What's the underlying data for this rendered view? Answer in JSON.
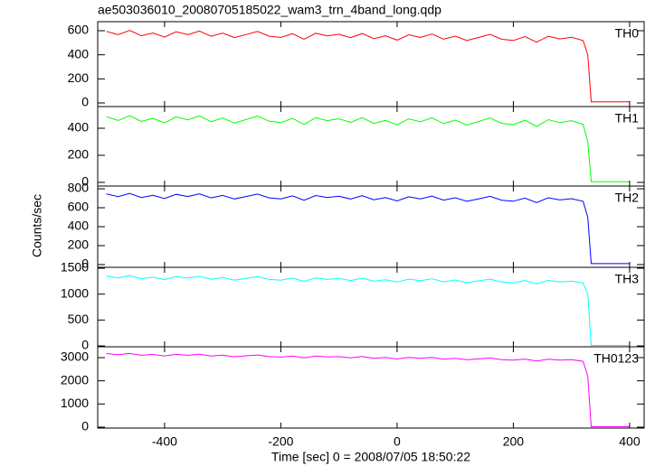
{
  "chart_data": [
    {
      "type": "line",
      "title": "ae503036010_20080705185022_wam3_trn_4band_long.qdp",
      "xlim": [
        -515,
        425
      ],
      "xticks": [
        -400,
        -200,
        0,
        200,
        400
      ],
      "ylim": [
        -30,
        675
      ],
      "yticks": [
        0,
        200,
        400,
        600
      ],
      "x": [
        -500,
        -480,
        -460,
        -440,
        -420,
        -400,
        -380,
        -360,
        -340,
        -320,
        -300,
        -280,
        -260,
        -240,
        -220,
        -200,
        -180,
        -160,
        -140,
        -120,
        -100,
        -80,
        -60,
        -40,
        -20,
        0,
        20,
        40,
        60,
        80,
        100,
        120,
        140,
        160,
        180,
        200,
        220,
        240,
        260,
        280,
        300,
        320,
        328,
        334,
        400
      ],
      "series": [
        {
          "name": "TH0",
          "color": "#ff0000",
          "values": [
            595,
            567,
            602,
            558,
            581,
            547,
            591,
            568,
            597,
            554,
            580,
            543,
            568,
            594,
            554,
            544,
            575,
            529,
            579,
            557,
            571,
            542,
            577,
            534,
            557,
            522,
            566,
            544,
            573,
            530,
            555,
            518,
            544,
            570,
            529,
            519,
            551,
            505,
            554,
            532,
            546,
            518,
            400,
            10,
            10
          ]
        }
      ]
    },
    {
      "type": "line",
      "xlim": [
        -515,
        425
      ],
      "xticks": [
        -400,
        -200,
        0,
        200,
        400
      ],
      "ylim": [
        -27,
        560
      ],
      "yticks": [
        0,
        200,
        400
      ],
      "x": [
        -500,
        -480,
        -460,
        -440,
        -420,
        -400,
        -380,
        -360,
        -340,
        -320,
        -300,
        -280,
        -260,
        -240,
        -220,
        -200,
        -180,
        -160,
        -140,
        -120,
        -100,
        -80,
        -60,
        -40,
        -20,
        0,
        20,
        40,
        60,
        80,
        100,
        120,
        140,
        160,
        180,
        200,
        220,
        240,
        260,
        280,
        300,
        320,
        328,
        334,
        400
      ],
      "series": [
        {
          "name": "TH1",
          "color": "#00ff00",
          "values": [
            485,
            457,
            493,
            450,
            473,
            439,
            484,
            462,
            491,
            448,
            475,
            438,
            464,
            490,
            451,
            441,
            473,
            428,
            478,
            456,
            470,
            443,
            478,
            435,
            458,
            425,
            469,
            447,
            477,
            434,
            460,
            423,
            450,
            476,
            436,
            426,
            459,
            413,
            463,
            441,
            456,
            428,
            300,
            5,
            5
          ]
        }
      ]
    },
    {
      "type": "line",
      "y_label": "Counts/sec",
      "xlim": [
        -515,
        425
      ],
      "xticks": [
        -400,
        -200,
        0,
        200,
        400
      ],
      "ylim": [
        -29,
        829
      ],
      "yticks": [
        0,
        200,
        400,
        600,
        800
      ],
      "x": [
        -500,
        -480,
        -460,
        -440,
        -420,
        -400,
        -380,
        -360,
        -340,
        -320,
        -300,
        -280,
        -260,
        -240,
        -220,
        -200,
        -180,
        -160,
        -140,
        -120,
        -100,
        -80,
        -60,
        -40,
        -20,
        0,
        20,
        40,
        60,
        80,
        100,
        120,
        140,
        160,
        180,
        200,
        220,
        240,
        260,
        280,
        300,
        320,
        328,
        334,
        400
      ],
      "series": [
        {
          "name": "TH2",
          "color": "#0000ff",
          "values": [
            745,
            717,
            752,
            708,
            731,
            697,
            741,
            718,
            747,
            704,
            730,
            693,
            718,
            744,
            704,
            694,
            725,
            679,
            729,
            707,
            721,
            692,
            727,
            684,
            707,
            672,
            716,
            694,
            723,
            680,
            705,
            668,
            694,
            720,
            679,
            669,
            701,
            655,
            705,
            682,
            696,
            668,
            500,
            10,
            10
          ]
        }
      ]
    },
    {
      "type": "line",
      "xlim": [
        -515,
        425
      ],
      "xticks": [
        -400,
        -200,
        0,
        200,
        400
      ],
      "ylim": [
        -17,
        1518
      ],
      "yticks": [
        0,
        500,
        1000,
        1500
      ],
      "x": [
        -500,
        -480,
        -460,
        -440,
        -420,
        -400,
        -380,
        -360,
        -340,
        -320,
        -300,
        -280,
        -260,
        -240,
        -220,
        -200,
        -180,
        -160,
        -140,
        -120,
        -100,
        -80,
        -60,
        -40,
        -20,
        0,
        20,
        40,
        60,
        80,
        100,
        120,
        140,
        160,
        180,
        200,
        220,
        240,
        260,
        280,
        300,
        320,
        328,
        334,
        400
      ],
      "series": [
        {
          "name": "TH3",
          "color": "#00ffff",
          "values": [
            1350,
            1312,
            1357,
            1299,
            1328,
            1282,
            1339,
            1309,
            1346,
            1288,
            1322,
            1271,
            1305,
            1338,
            1284,
            1269,
            1311,
            1248,
            1314,
            1284,
            1301,
            1263,
            1308,
            1250,
            1279,
            1233,
            1290,
            1260,
            1297,
            1239,
            1273,
            1222,
            1256,
            1289,
            1235,
            1220,
            1262,
            1199,
            1265,
            1235,
            1252,
            1214,
            1000,
            10,
            10
          ]
        }
      ]
    },
    {
      "type": "line",
      "x_label": "Time [sec] 0 = 2008/07/05 18:50:22",
      "xlim": [
        -515,
        425
      ],
      "xticks": [
        -400,
        -200,
        0,
        200,
        400
      ],
      "ylim": [
        -39,
        3467
      ],
      "yticks": [
        0,
        1000,
        2000,
        3000
      ],
      "x": [
        -500,
        -480,
        -460,
        -440,
        -420,
        -400,
        -380,
        -360,
        -340,
        -320,
        -300,
        -280,
        -260,
        -240,
        -220,
        -200,
        -180,
        -160,
        -140,
        -120,
        -100,
        -80,
        -60,
        -40,
        -20,
        0,
        20,
        40,
        60,
        80,
        100,
        120,
        140,
        160,
        180,
        200,
        220,
        240,
        260,
        280,
        300,
        320,
        328,
        334,
        400
      ],
      "series": [
        {
          "name": "TH0123",
          "color": "#ff00ff",
          "values": [
            3175,
            3123,
            3177,
            3100,
            3134,
            3072,
            3140,
            3099,
            3142,
            3066,
            3104,
            3038,
            3076,
            3114,
            3043,
            3021,
            3070,
            2988,
            3066,
            3025,
            3043,
            2992,
            3045,
            2969,
            3002,
            2940,
            3009,
            2967,
            3011,
            2934,
            2972,
            2906,
            2944,
            2983,
            2911,
            2890,
            2938,
            2856,
            2935,
            2893,
            2912,
            2840,
            2200,
            20,
            20
          ]
        }
      ]
    }
  ]
}
